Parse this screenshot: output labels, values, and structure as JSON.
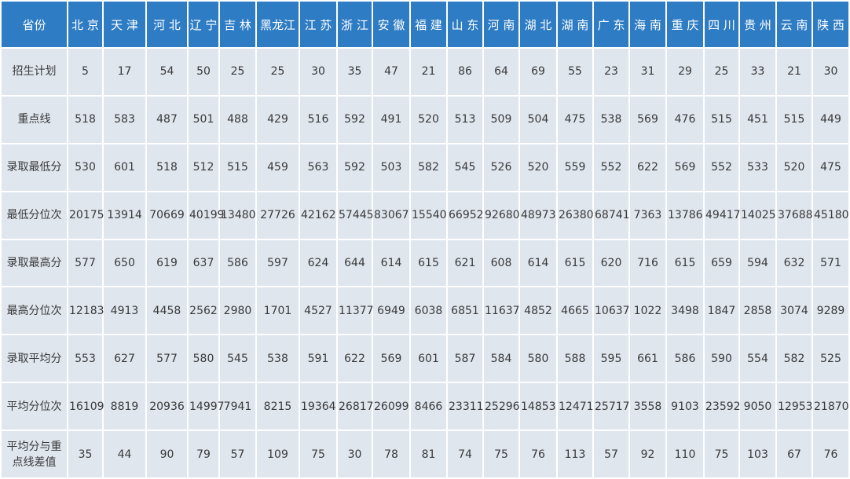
{
  "table": {
    "header": [
      "省份",
      "北 京",
      "天 津",
      "河 北",
      "辽 宁",
      "吉 林",
      "黑龙江",
      "江 苏",
      "浙 江",
      "安 徽",
      "福 建",
      "山 东",
      "河 南",
      "湖 北",
      "湖 南",
      "广 东",
      "海 南",
      "重 庆",
      "四 川",
      "贵 州",
      "云 南",
      "陕 西"
    ],
    "rows": [
      [
        "招生计划",
        5,
        17,
        54,
        50,
        25,
        25,
        30,
        35,
        47,
        21,
        86,
        64,
        69,
        55,
        23,
        31,
        29,
        25,
        33,
        21,
        30
      ],
      [
        "重点线",
        518,
        583,
        487,
        501,
        488,
        429,
        516,
        592,
        491,
        520,
        513,
        509,
        504,
        475,
        538,
        569,
        476,
        515,
        451,
        515,
        449
      ],
      [
        "录取最低分",
        530,
        601,
        518,
        512,
        515,
        459,
        563,
        592,
        503,
        582,
        545,
        526,
        520,
        559,
        552,
        622,
        569,
        552,
        533,
        520,
        475
      ],
      [
        "最低分位次",
        20175,
        13914,
        70669,
        40199,
        13480,
        27726,
        42162,
        57445,
        83067,
        15540,
        66952,
        92680,
        48973,
        26380,
        68741,
        7363,
        13786,
        49417,
        14025,
        37688,
        45180
      ],
      [
        "录取最高分",
        577,
        650,
        619,
        637,
        586,
        597,
        624,
        644,
        614,
        615,
        621,
        608,
        614,
        615,
        620,
        716,
        615,
        659,
        594,
        632,
        571
      ],
      [
        "最高分位次",
        12183,
        4913,
        4458,
        2562,
        2980,
        1701,
        4527,
        11377,
        6949,
        6038,
        6851,
        11637,
        4852,
        4665,
        10637,
        1022,
        3498,
        1847,
        2858,
        3074,
        9289
      ],
      [
        "录取平均分",
        553,
        627,
        577,
        580,
        545,
        538,
        591,
        622,
        569,
        601,
        587,
        584,
        580,
        588,
        595,
        661,
        586,
        590,
        554,
        582,
        525
      ],
      [
        "平均分位次",
        16109,
        8819,
        20936,
        14997,
        7941,
        8215,
        19364,
        26817,
        26099,
        8466,
        23311,
        25296,
        14853,
        12471,
        25717,
        3558,
        9103,
        23592,
        9050,
        12953,
        21870
      ],
      [
        "平均分与重点线差值",
        35,
        44,
        90,
        79,
        57,
        109,
        75,
        30,
        78,
        81,
        74,
        75,
        76,
        113,
        57,
        92,
        110,
        75,
        103,
        67,
        76
      ]
    ]
  }
}
